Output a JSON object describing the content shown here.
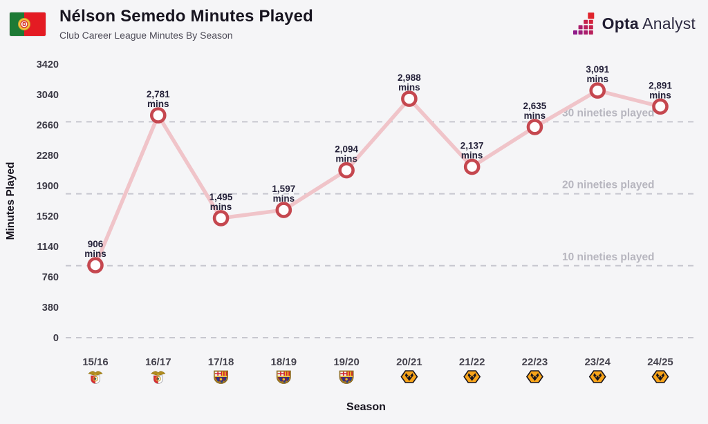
{
  "header": {
    "title": "Nélson Semedo Minutes Played",
    "subtitle": "Club Career League Minutes By Season",
    "flag_name": "portugal-flag",
    "brand": {
      "bold": "Opta",
      "regular": "Analyst",
      "text_color": "#211d32",
      "logo_purple": "#8f1a8a",
      "logo_red": "#e0242c"
    }
  },
  "chart_data": {
    "type": "line",
    "title": "Nélson Semedo Minutes Played",
    "subtitle": "Club Career League Minutes By Season",
    "xlabel": "Season",
    "ylabel": "Minutes Played",
    "categories": [
      "15/16",
      "16/17",
      "17/18",
      "18/19",
      "19/20",
      "20/21",
      "21/22",
      "22/23",
      "23/24",
      "24/25"
    ],
    "clubs": [
      "benfica",
      "benfica",
      "barcelona",
      "barcelona",
      "barcelona",
      "wolves",
      "wolves",
      "wolves",
      "wolves",
      "wolves"
    ],
    "values": [
      906,
      2781,
      1495,
      1597,
      2094,
      2988,
      2137,
      2635,
      3091,
      2891
    ],
    "point_labels": [
      "906",
      "2,781",
      "1,495",
      "1,597",
      "2,094",
      "2,988",
      "2,137",
      "2,635",
      "3,091",
      "2,891"
    ],
    "point_label_suffix": "mins",
    "yticks": [
      0,
      380,
      760,
      1140,
      1520,
      1900,
      2280,
      2660,
      3040,
      3420
    ],
    "ylim": [
      0,
      3420
    ],
    "grid": "dashed-horizontal-reference-lines",
    "legend": "none",
    "reference_lines": [
      {
        "value": 900,
        "label": "10 nineties played"
      },
      {
        "value": 1800,
        "label": "20 nineties played"
      },
      {
        "value": 2700,
        "label": "30 nineties played"
      },
      {
        "value": 0,
        "label": ""
      }
    ],
    "colors": {
      "background": "#f5f5f7",
      "line": "#f0c4c9",
      "marker_stroke": "#c5474f",
      "marker_fill": "#fefdfd",
      "point_label": "#25223a",
      "tick_label": "#3c3a46",
      "ref_label": "#b7b6bf",
      "dash": "#c7c7cf",
      "axis_title": "#17141f",
      "season_label": "#45434e"
    }
  }
}
